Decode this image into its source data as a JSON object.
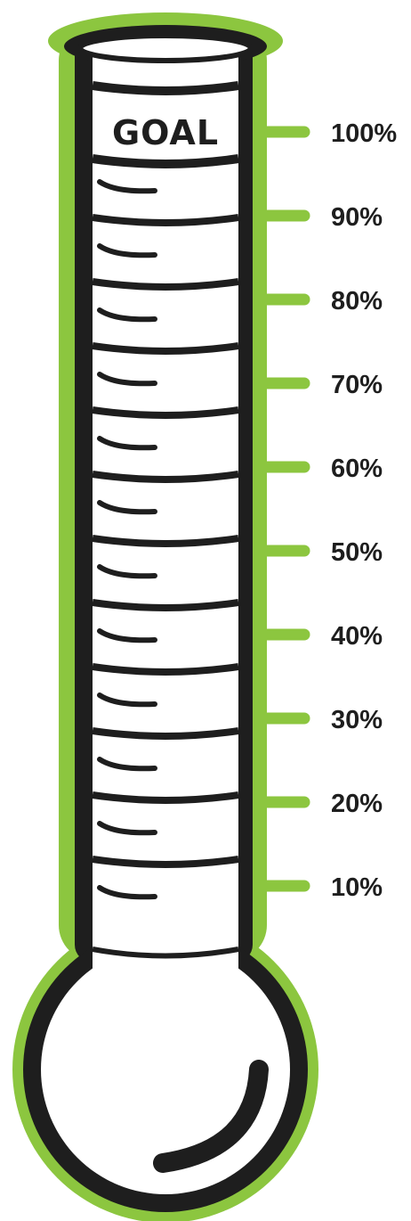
{
  "goal_label": "GOAL",
  "scale": [
    "100%",
    "90%",
    "80%",
    "70%",
    "60%",
    "50%",
    "40%",
    "30%",
    "20%",
    "10%"
  ],
  "colors": {
    "outline_green": "#8cc63f",
    "ink": "#1e1e1e",
    "glass": "#ffffff",
    "background": "#ffffff"
  }
}
